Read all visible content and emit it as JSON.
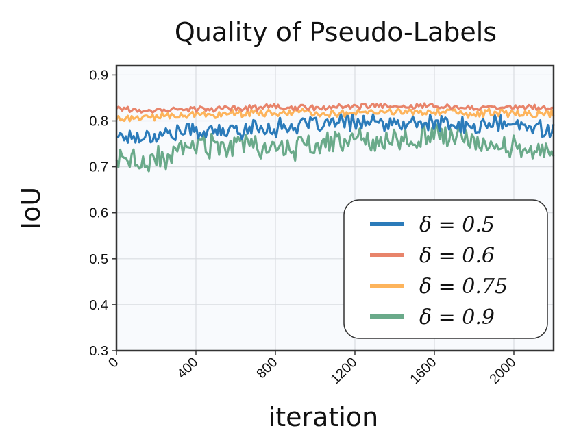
{
  "chart_data": {
    "type": "line",
    "title": "Quality of Pseudo-Labels",
    "xlabel": "iteration",
    "ylabel": "IoU",
    "xlim": [
      0,
      2200
    ],
    "ylim": [
      0.3,
      0.92
    ],
    "x_ticks": [
      0,
      400,
      800,
      1200,
      1600,
      2000
    ],
    "x_tick_labels": [
      "0",
      "400",
      "800",
      "1200",
      "1600",
      "2000"
    ],
    "y_ticks": [
      0.3,
      0.4,
      0.5,
      0.6,
      0.7,
      0.8,
      0.9
    ],
    "y_tick_labels": [
      "0.3",
      "0.4",
      "0.5",
      "0.6",
      "0.7",
      "0.8",
      "0.9"
    ],
    "grid": true,
    "legend_position": "bottom-right",
    "x": [
      0,
      100,
      200,
      300,
      400,
      500,
      600,
      700,
      800,
      900,
      1000,
      1100,
      1200,
      1300,
      1400,
      1500,
      1600,
      1700,
      1800,
      1900,
      2000,
      2100,
      2200
    ],
    "series": [
      {
        "name": "δ = 0.5",
        "color": "#2b7bba",
        "values": [
          0.77,
          0.765,
          0.77,
          0.775,
          0.78,
          0.775,
          0.78,
          0.785,
          0.785,
          0.79,
          0.79,
          0.795,
          0.8,
          0.795,
          0.79,
          0.795,
          0.795,
          0.79,
          0.785,
          0.795,
          0.79,
          0.785,
          0.785
        ],
        "amplitude": 0.016
      },
      {
        "name": "δ = 0.6",
        "color": "#e8846b",
        "values": [
          0.83,
          0.822,
          0.824,
          0.826,
          0.825,
          0.827,
          0.828,
          0.829,
          0.83,
          0.829,
          0.829,
          0.83,
          0.831,
          0.832,
          0.831,
          0.832,
          0.832,
          0.831,
          0.83,
          0.83,
          0.829,
          0.83,
          0.829
        ],
        "amplitude": 0.005
      },
      {
        "name": "δ = 0.75",
        "color": "#fdb45c",
        "values": [
          0.805,
          0.805,
          0.81,
          0.812,
          0.814,
          0.815,
          0.816,
          0.816,
          0.817,
          0.817,
          0.817,
          0.818,
          0.819,
          0.818,
          0.818,
          0.82,
          0.818,
          0.818,
          0.815,
          0.817,
          0.815,
          0.815,
          0.815
        ],
        "amplitude": 0.007
      },
      {
        "name": "δ = 0.9",
        "color": "#6aaa8a",
        "values": [
          0.715,
          0.71,
          0.715,
          0.73,
          0.75,
          0.745,
          0.745,
          0.745,
          0.74,
          0.74,
          0.745,
          0.755,
          0.76,
          0.755,
          0.765,
          0.765,
          0.775,
          0.76,
          0.755,
          0.75,
          0.745,
          0.74,
          0.735
        ],
        "amplitude": 0.022
      }
    ]
  }
}
